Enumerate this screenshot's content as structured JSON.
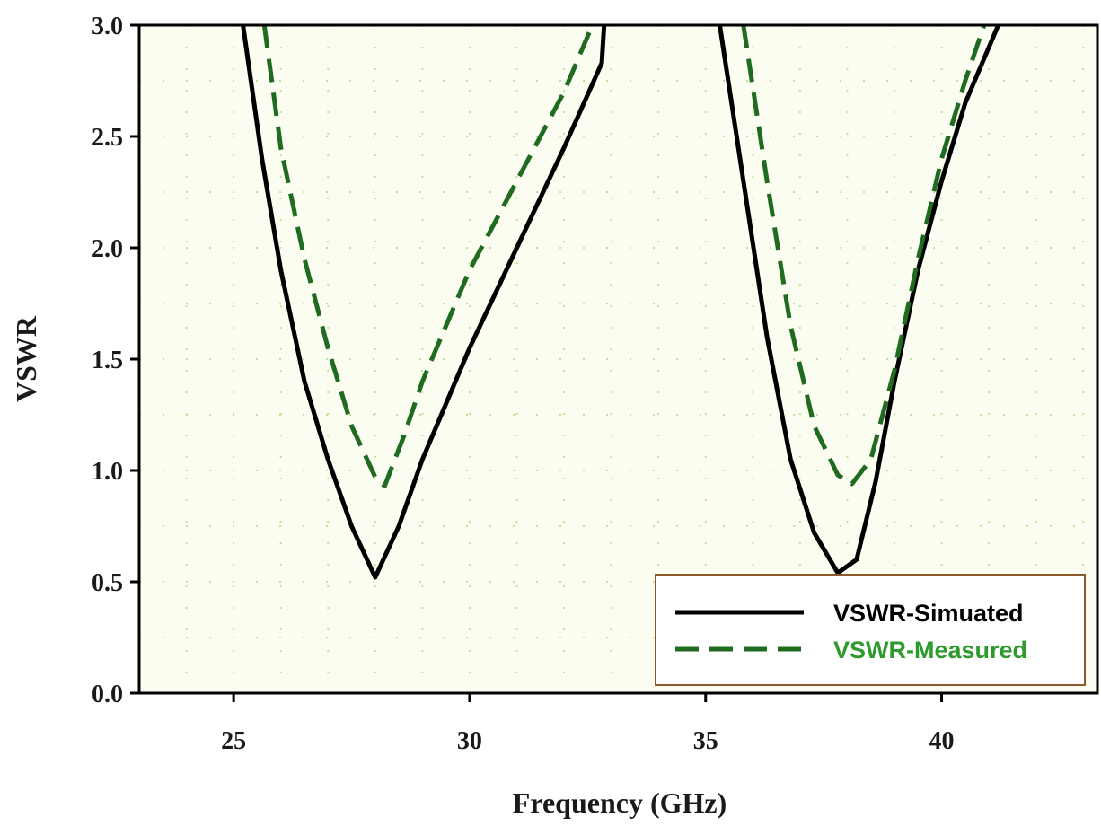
{
  "chart_data": {
    "type": "line",
    "xlabel": "Frequency (GHz)",
    "ylabel": "VSWR",
    "xlim": [
      23,
      43.3
    ],
    "ylim": [
      0,
      3
    ],
    "xticks": [
      25,
      30,
      35,
      40
    ],
    "yticks": [
      0.0,
      0.5,
      1.0,
      1.5,
      2.0,
      2.5,
      3.0
    ],
    "xtick_labels": [
      "25",
      "30",
      "35",
      "40"
    ],
    "ytick_labels": [
      "0.0",
      "0.5",
      "1.0",
      "1.5",
      "2.0",
      "2.5",
      "3.0"
    ],
    "grid": "dotted",
    "legend_position": "bottom-right",
    "colors": {
      "plot_background": "#fbfdf0",
      "grid": "#bfe39a",
      "axes": "#000000",
      "legend_border": "#8b5a2b"
    },
    "series": [
      {
        "name": "VSWR-Simuated",
        "color": "#000000",
        "dash": "solid",
        "segments": [
          [
            [
              25.2,
              3.0
            ],
            [
              25.6,
              2.4
            ],
            [
              26.0,
              1.9
            ],
            [
              26.5,
              1.4
            ],
            [
              27.0,
              1.05
            ],
            [
              27.5,
              0.75
            ],
            [
              28.0,
              0.52
            ],
            [
              28.5,
              0.75
            ],
            [
              29.0,
              1.05
            ],
            [
              30.0,
              1.55
            ],
            [
              31.0,
              2.0
            ],
            [
              32.0,
              2.45
            ],
            [
              32.8,
              2.83
            ],
            [
              32.85,
              3.0
            ]
          ],
          [
            [
              35.3,
              3.0
            ],
            [
              35.8,
              2.3
            ],
            [
              36.3,
              1.6
            ],
            [
              36.8,
              1.05
            ],
            [
              37.3,
              0.72
            ],
            [
              37.8,
              0.54
            ],
            [
              38.2,
              0.6
            ],
            [
              38.6,
              0.95
            ],
            [
              39.0,
              1.4
            ],
            [
              39.5,
              1.9
            ],
            [
              40.0,
              2.3
            ],
            [
              40.5,
              2.65
            ],
            [
              41.2,
              3.0
            ]
          ]
        ]
      },
      {
        "name": "VSWR-Measured",
        "color": "#1f6b1f",
        "dash": "dashed",
        "segments": [
          [
            [
              25.65,
              3.0
            ],
            [
              26.0,
              2.45
            ],
            [
              26.5,
              1.95
            ],
            [
              27.0,
              1.55
            ],
            [
              27.5,
              1.2
            ],
            [
              28.0,
              0.97
            ],
            [
              28.2,
              0.93
            ],
            [
              28.6,
              1.15
            ],
            [
              29.0,
              1.4
            ],
            [
              30.0,
              1.9
            ],
            [
              31.0,
              2.3
            ],
            [
              32.0,
              2.7
            ],
            [
              32.6,
              3.0
            ]
          ],
          [
            [
              35.8,
              3.0
            ],
            [
              36.3,
              2.3
            ],
            [
              36.8,
              1.65
            ],
            [
              37.3,
              1.2
            ],
            [
              37.8,
              0.98
            ],
            [
              38.1,
              0.94
            ],
            [
              38.5,
              1.05
            ],
            [
              39.0,
              1.45
            ],
            [
              39.5,
              1.95
            ],
            [
              40.0,
              2.4
            ],
            [
              40.5,
              2.75
            ],
            [
              40.9,
              3.0
            ]
          ]
        ]
      }
    ]
  }
}
